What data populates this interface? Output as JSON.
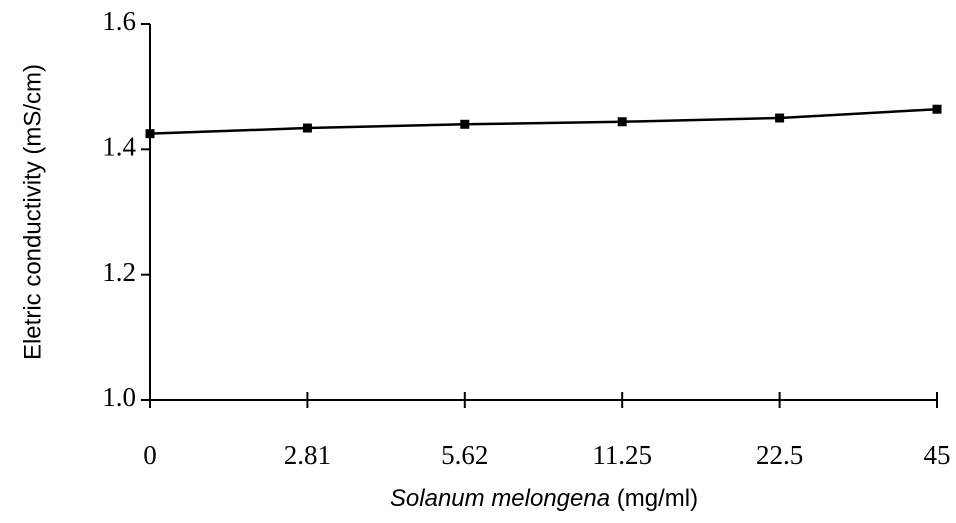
{
  "chart_data": {
    "type": "line",
    "ylabel": "Eletric conductivity (mS/cm)",
    "xlabel": [
      "Solanum melongena",
      "(mg/ml)"
    ],
    "categories": [
      "0",
      "2.81",
      "5.62",
      "11.25",
      "22.5",
      "45"
    ],
    "series": [
      {
        "name": null,
        "color": "#000000",
        "values": [
          1.425,
          1.434,
          1.44,
          1.444,
          1.45,
          1.464
        ]
      }
    ],
    "ylim": [
      1,
      1.6
    ],
    "yticks": [
      {
        "value": 1,
        "label": "1.0"
      },
      1.2,
      1.4,
      1.6
    ],
    "grid": false
  }
}
